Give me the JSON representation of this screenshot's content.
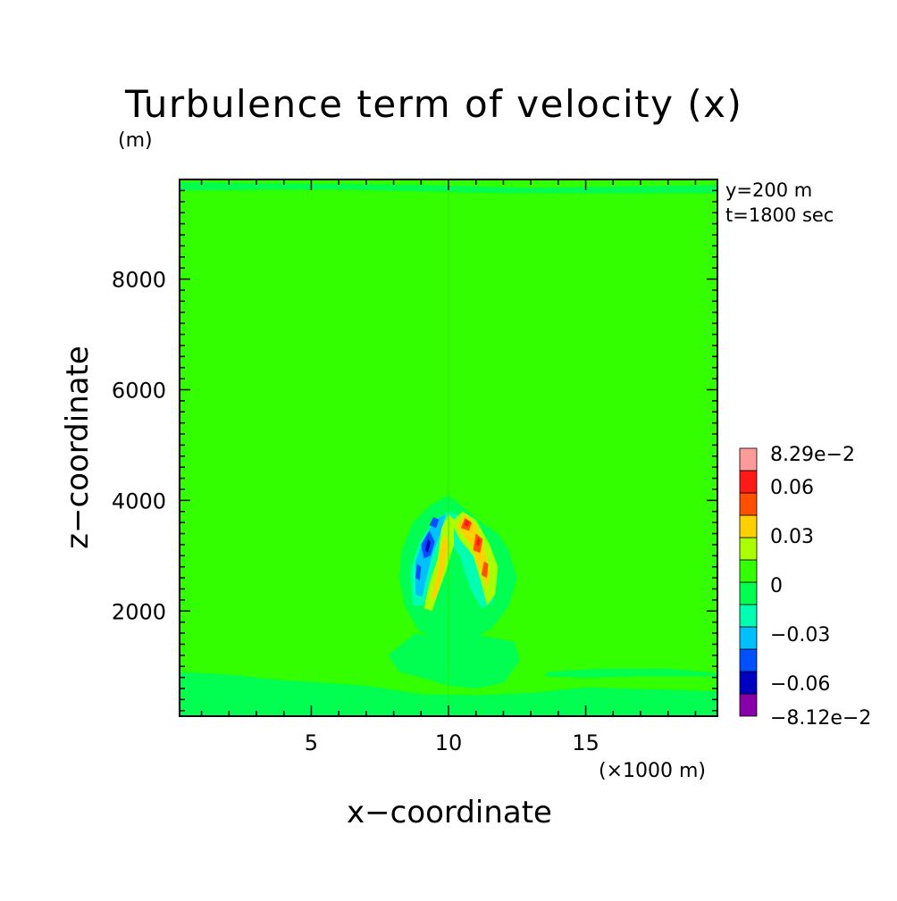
{
  "chart_data": {
    "type": "heatmap",
    "title": "Turbulence term of velocity (x)",
    "y_unit": "(m)",
    "x_unit": "(×1000 m)",
    "xlabel": "x−coordinate",
    "ylabel": "z−coordinate",
    "annotations": [
      "y=200 m",
      "t=1800 sec"
    ],
    "xlim": [
      0.2,
      19.8
    ],
    "ylim": [
      100,
      9800
    ],
    "x_ticks": [
      5,
      10,
      15
    ],
    "x_tick_labels": [
      "5",
      "10",
      "15"
    ],
    "y_ticks": [
      2000,
      4000,
      6000,
      8000
    ],
    "y_tick_labels": [
      "2000",
      "4000",
      "6000",
      "8000"
    ],
    "x_minor_step": 1,
    "y_minor_step": 200,
    "grid": false,
    "legend_placement": "right",
    "colorbar": {
      "colors": [
        "#8800aa",
        "#0000c0",
        "#0050ff",
        "#00c0ff",
        "#00ffb0",
        "#00ff50",
        "#33ff00",
        "#aaff00",
        "#ffd000",
        "#ff5000",
        "#ff1a1a",
        "#ff9a9a"
      ],
      "labels": [
        "8.29e−2",
        "0.06",
        "0.03",
        "0",
        "−0.03",
        "−0.06",
        "−8.12e−2"
      ],
      "min": -0.0812,
      "max": 0.0829
    },
    "regions": [
      {
        "color": "#33ff00",
        "points": [
          [
            0.2,
            100
          ],
          [
            19.8,
            100
          ],
          [
            19.8,
            9800
          ],
          [
            0.2,
            9800
          ]
        ]
      },
      {
        "color": "#00ff50",
        "points": [
          [
            0.2,
            9750
          ],
          [
            9.2,
            9700
          ],
          [
            13,
            9650
          ],
          [
            19.8,
            9700
          ],
          [
            19.8,
            9550
          ],
          [
            12,
            9550
          ],
          [
            6,
            9620
          ],
          [
            0.2,
            9600
          ]
        ]
      },
      {
        "color": "#00ff50",
        "points": [
          [
            0.2,
            100
          ],
          [
            19.8,
            100
          ],
          [
            19.8,
            550
          ],
          [
            15,
            620
          ],
          [
            13,
            520
          ],
          [
            11,
            480
          ],
          [
            9,
            500
          ],
          [
            7,
            650
          ],
          [
            4,
            750
          ],
          [
            2,
            850
          ],
          [
            0.2,
            900
          ]
        ]
      },
      {
        "color": "#00ff50",
        "points": [
          [
            13.6,
            900
          ],
          [
            15.5,
            960
          ],
          [
            18,
            960
          ],
          [
            19.8,
            880
          ],
          [
            19.8,
            820
          ],
          [
            17,
            820
          ],
          [
            15,
            790
          ],
          [
            13.5,
            820
          ]
        ]
      },
      {
        "color": "#00ff50",
        "points": [
          [
            8.4,
            2100
          ],
          [
            8.2,
            2600
          ],
          [
            8.3,
            3100
          ],
          [
            8.7,
            3600
          ],
          [
            9.3,
            3900
          ],
          [
            10,
            4100
          ],
          [
            10.6,
            3850
          ],
          [
            11.2,
            3600
          ],
          [
            11.8,
            3400
          ],
          [
            12.2,
            3100
          ],
          [
            12.5,
            2600
          ],
          [
            12.2,
            2100
          ],
          [
            11.6,
            1700
          ],
          [
            11,
            1500
          ],
          [
            10.3,
            1450
          ],
          [
            9.5,
            1500
          ],
          [
            8.9,
            1650
          ]
        ]
      },
      {
        "color": "#00ff50",
        "points": [
          [
            7.8,
            1200
          ],
          [
            8.8,
            1600
          ],
          [
            10,
            1500
          ],
          [
            11.3,
            1550
          ],
          [
            12.4,
            1450
          ],
          [
            12.6,
            1100
          ],
          [
            12,
            700
          ],
          [
            11,
            600
          ],
          [
            10,
            650
          ],
          [
            9,
            800
          ],
          [
            8.2,
            900
          ]
        ]
      },
      {
        "color": "#00ffb0",
        "points": [
          [
            8.7,
            2100
          ],
          [
            8.6,
            2700
          ],
          [
            8.9,
            3200
          ],
          [
            9.4,
            3600
          ],
          [
            10,
            3800
          ],
          [
            10.6,
            3700
          ],
          [
            11.1,
            3400
          ],
          [
            11.6,
            3000
          ],
          [
            11.8,
            2600
          ],
          [
            11.6,
            2150
          ],
          [
            11.2,
            2050
          ],
          [
            10.8,
            2400
          ],
          [
            10.4,
            3000
          ],
          [
            10,
            3300
          ],
          [
            9.6,
            3000
          ],
          [
            9.3,
            2500
          ],
          [
            9.1,
            2100
          ]
        ]
      },
      {
        "color": "#00c0ff",
        "points": [
          [
            8.8,
            2300
          ],
          [
            8.8,
            2900
          ],
          [
            9.1,
            3300
          ],
          [
            9.5,
            3650
          ],
          [
            9.9,
            3750
          ],
          [
            9.7,
            3400
          ],
          [
            9.4,
            3000
          ],
          [
            9.2,
            2600
          ],
          [
            9.05,
            2250
          ]
        ]
      },
      {
        "color": "#0050ff",
        "points": [
          [
            9.1,
            2950
          ],
          [
            9.0,
            3200
          ],
          [
            9.3,
            3450
          ],
          [
            9.5,
            3250
          ],
          [
            9.35,
            3000
          ]
        ]
      },
      {
        "color": "#0050ff",
        "points": [
          [
            9.3,
            3550
          ],
          [
            9.45,
            3700
          ],
          [
            9.65,
            3650
          ],
          [
            9.55,
            3500
          ]
        ]
      },
      {
        "color": "#0050ff",
        "points": [
          [
            8.8,
            2600
          ],
          [
            8.85,
            2850
          ],
          [
            9.0,
            2800
          ],
          [
            8.95,
            2550
          ]
        ]
      },
      {
        "color": "#0000c0",
        "points": [
          [
            9.15,
            3100
          ],
          [
            9.25,
            3300
          ],
          [
            9.35,
            3250
          ],
          [
            9.25,
            3050
          ]
        ]
      },
      {
        "color": "#aaff00",
        "points": [
          [
            9.1,
            2050
          ],
          [
            9.3,
            2500
          ],
          [
            9.6,
            2950
          ],
          [
            9.75,
            3500
          ],
          [
            10,
            3750
          ],
          [
            10.2,
            3650
          ],
          [
            10.2,
            3200
          ],
          [
            9.9,
            2700
          ],
          [
            9.6,
            2300
          ],
          [
            9.4,
            2000
          ]
        ]
      },
      {
        "color": "#aaff00",
        "points": [
          [
            10.1,
            3600
          ],
          [
            10.5,
            3800
          ],
          [
            11.0,
            3650
          ],
          [
            11.5,
            3200
          ],
          [
            11.8,
            2800
          ],
          [
            11.7,
            2300
          ],
          [
            11.4,
            2100
          ],
          [
            11.2,
            2500
          ],
          [
            10.9,
            3000
          ],
          [
            10.4,
            3300
          ]
        ]
      },
      {
        "color": "#ffd000",
        "points": [
          [
            9.35,
            2200
          ],
          [
            9.6,
            2700
          ],
          [
            9.75,
            3200
          ],
          [
            9.9,
            3400
          ],
          [
            10.0,
            3200
          ],
          [
            9.8,
            2700
          ],
          [
            9.55,
            2250
          ]
        ]
      },
      {
        "color": "#ffd000",
        "points": [
          [
            10.3,
            3550
          ],
          [
            10.6,
            3750
          ],
          [
            11.0,
            3550
          ],
          [
            11.3,
            3150
          ],
          [
            11.5,
            2700
          ],
          [
            11.4,
            2400
          ],
          [
            11.1,
            2800
          ],
          [
            10.8,
            3200
          ],
          [
            10.5,
            3400
          ]
        ]
      },
      {
        "color": "#ff5000",
        "points": [
          [
            10.45,
            3500
          ],
          [
            10.6,
            3680
          ],
          [
            10.85,
            3600
          ],
          [
            10.75,
            3450
          ]
        ]
      },
      {
        "color": "#ff5000",
        "points": [
          [
            10.9,
            3100
          ],
          [
            11.0,
            3400
          ],
          [
            11.25,
            3300
          ],
          [
            11.15,
            3050
          ]
        ]
      },
      {
        "color": "#ff5000",
        "points": [
          [
            11.2,
            2650
          ],
          [
            11.3,
            2900
          ],
          [
            11.45,
            2850
          ],
          [
            11.4,
            2600
          ]
        ]
      },
      {
        "color": "#ff1a1a",
        "points": [
          [
            10.55,
            3560
          ],
          [
            10.65,
            3660
          ],
          [
            10.78,
            3600
          ],
          [
            10.7,
            3520
          ]
        ]
      },
      {
        "color": "#ff1a1a",
        "points": [
          [
            11.0,
            3200
          ],
          [
            11.07,
            3330
          ],
          [
            11.17,
            3280
          ],
          [
            11.12,
            3170
          ]
        ]
      }
    ]
  }
}
